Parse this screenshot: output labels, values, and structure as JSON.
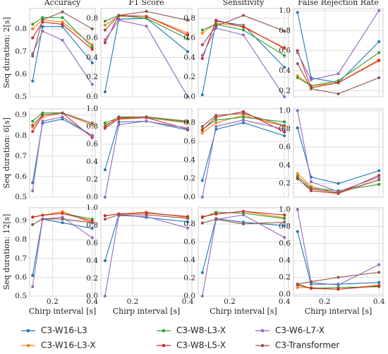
{
  "chart_data": {
    "type": "line",
    "x": [
      0.1,
      0.15,
      0.25,
      0.4
    ],
    "xlim": [
      0.085,
      0.415
    ],
    "xticks": [
      0.2,
      0.4
    ],
    "xlabel": "Chirp interval [s]",
    "columns": [
      "Accuracy",
      "F1 Score",
      "Sensitivity",
      "False Rejection Rate"
    ],
    "rows": [
      "Seq duration: 2[s]",
      "Seq duration: 6[s]",
      "Seq duration: 12[s]"
    ],
    "grid": true,
    "legend": [
      {
        "name": "C3-W16-L3",
        "color": "#1f77b4"
      },
      {
        "name": "C3-W16-L3-X",
        "color": "#ff7f0e"
      },
      {
        "name": "C3-W8-L3-X",
        "color": "#2ca02c"
      },
      {
        "name": "C3-W8-L5-X",
        "color": "#d62728"
      },
      {
        "name": "C3-W6-L7-X",
        "color": "#9467bd"
      },
      {
        "name": "C3-Transformer",
        "color": "#8c564b"
      }
    ],
    "panels": [
      {
        "ylim": [
          0.5,
          0.89
        ],
        "yticks": [
          0.5,
          0.6,
          0.7,
          0.8
        ],
        "series": [
          {
            "values": [
              0.57,
              0.81,
              0.81,
              0.65
            ]
          },
          {
            "values": [
              0.8,
              0.84,
              0.83,
              0.73
            ]
          },
          {
            "values": [
              0.82,
              0.85,
              0.85,
              0.72
            ]
          },
          {
            "values": [
              0.76,
              0.83,
              0.82,
              0.71
            ]
          },
          {
            "values": [
              0.69,
              0.79,
              0.75,
              0.555
            ]
          },
          {
            "values": [
              0.68,
              0.84,
              0.875,
              0.8
            ]
          }
        ]
      },
      {
        "ylim": [
          0,
          0.9
        ],
        "yticks": [
          {
            "value": 0,
            "label": "0.0"
          },
          0.2,
          0.4,
          0.6,
          0.8
        ],
        "series": [
          {
            "values": [
              0.05,
              0.79,
              0.8,
              0.46
            ]
          },
          {
            "values": [
              0.73,
              0.82,
              0.82,
              0.65
            ]
          },
          {
            "values": [
              0.77,
              0.83,
              0.8,
              0.59
            ]
          },
          {
            "values": [
              0.55,
              0.83,
              0.82,
              0.63
            ]
          },
          {
            "values": [
              0.58,
              0.78,
              0.72,
              0.0
            ]
          },
          {
            "values": [
              0.68,
              0.83,
              0.87,
              0.78
            ]
          }
        ]
      },
      {
        "ylim": [
          0,
          0.9
        ],
        "yticks": [
          {
            "value": 0,
            "label": "0.0"
          },
          0.2,
          0.4,
          0.6,
          0.8
        ],
        "series": [
          {
            "values": [
              0.02,
              0.77,
              0.73,
              0.3
            ]
          },
          {
            "values": [
              0.65,
              0.75,
              0.72,
              0.49
            ]
          },
          {
            "values": [
              0.68,
              0.74,
              0.68,
              0.42
            ]
          },
          {
            "values": [
              0.39,
              0.78,
              0.71,
              0.5
            ]
          },
          {
            "values": [
              0.42,
              0.7,
              0.63,
              0.0
            ]
          },
          {
            "values": [
              0.53,
              0.72,
              0.83,
              0.67
            ]
          }
        ]
      },
      {
        "ylim": [
          0.14,
          1.02
        ],
        "yticks": [
          0.2,
          0.4,
          0.6,
          0.8,
          {
            "value": 1,
            "label": "1.0"
          }
        ],
        "series": [
          {
            "values": [
              0.98,
              0.33,
              0.28,
              0.69
            ]
          },
          {
            "values": [
              0.35,
              0.25,
              0.28,
              0.51
            ]
          },
          {
            "values": [
              0.33,
              0.25,
              0.3,
              0.58
            ]
          },
          {
            "values": [
              0.6,
              0.23,
              0.28,
              0.5
            ]
          },
          {
            "values": [
              0.58,
              0.31,
              0.37,
              1.0
            ]
          },
          {
            "values": [
              0.47,
              0.22,
              0.17,
              0.33
            ]
          }
        ]
      },
      {
        "ylim": [
          0.5,
          0.93
        ],
        "yticks": [
          0.5,
          0.6,
          0.7,
          0.8,
          0.9
        ],
        "series": [
          {
            "values": [
              0.57,
              0.86,
              0.88,
              0.8
            ]
          },
          {
            "values": [
              0.84,
              0.89,
              0.91,
              0.85
            ]
          },
          {
            "values": [
              0.87,
              0.91,
              0.91,
              0.86
            ]
          },
          {
            "values": [
              0.82,
              0.9,
              0.91,
              0.79
            ]
          },
          {
            "values": [
              0.53,
              0.87,
              0.89,
              0.8
            ]
          },
          {
            "values": [
              0.85,
              0.9,
              0.91,
              0.86
            ]
          }
        ]
      },
      {
        "ylim": [
          0,
          1.0
        ],
        "yticks": [
          {
            "value": 0,
            "label": "0.0"
          },
          0.2,
          0.4,
          0.6,
          0.8,
          {
            "value": 1,
            "label": "1.0"
          }
        ],
        "series": [
          {
            "values": [
              0.31,
              0.85,
              0.86,
              0.76
            ]
          },
          {
            "values": [
              0.82,
              0.88,
              0.9,
              0.84
            ]
          },
          {
            "values": [
              0.84,
              0.9,
              0.9,
              0.85
            ]
          },
          {
            "values": [
              0.78,
              0.89,
              0.9,
              0.77
            ]
          },
          {
            "values": [
              0.0,
              0.82,
              0.86,
              0.78
            ]
          },
          {
            "values": [
              0.8,
              0.91,
              0.91,
              0.86
            ]
          }
        ]
      },
      {
        "ylim": [
          0,
          0.95
        ],
        "yticks": [
          {
            "value": 0,
            "label": "0.0"
          },
          0.2,
          0.4,
          0.6,
          0.8
        ],
        "series": [
          {
            "values": [
              0.18,
              0.73,
              0.8,
              0.66
            ]
          },
          {
            "values": [
              0.69,
              0.8,
              0.88,
              0.76
            ]
          },
          {
            "values": [
              0.73,
              0.83,
              0.86,
              0.81
            ]
          },
          {
            "values": [
              0.72,
              0.86,
              0.92,
              0.7
            ]
          },
          {
            "values": [
              0.0,
              0.76,
              0.83,
              0.73
            ]
          },
          {
            "values": [
              0.76,
              0.88,
              0.9,
              0.77
            ]
          }
        ]
      },
      {
        "ylim": [
          0.05,
          1.02
        ],
        "yticks": [
          0.2,
          0.4,
          0.6,
          0.8,
          {
            "value": 1,
            "label": "1.0"
          }
        ],
        "series": [
          {
            "values": [
              0.81,
              0.27,
              0.2,
              0.34
            ]
          },
          {
            "values": [
              0.31,
              0.17,
              0.09,
              0.24
            ]
          },
          {
            "values": [
              0.28,
              0.15,
              0.12,
              0.19
            ]
          },
          {
            "values": [
              0.26,
              0.12,
              0.09,
              0.29
            ]
          },
          {
            "values": [
              1.0,
              0.22,
              0.11,
              0.27
            ]
          },
          {
            "values": [
              0.25,
              0.14,
              0.1,
              0.24
            ]
          }
        ]
      },
      {
        "ylim": [
          0.5,
          0.97
        ],
        "yticks": [
          0.5,
          0.6,
          0.7,
          0.8,
          0.9
        ],
        "series": [
          {
            "values": [
              0.61,
              0.91,
              0.89,
              0.86
            ]
          },
          {
            "values": [
              0.92,
              0.93,
              0.95,
              0.89
            ]
          },
          {
            "values": [
              0.92,
              0.93,
              0.94,
              0.91
            ]
          },
          {
            "values": [
              0.92,
              0.93,
              0.94,
              0.9
            ]
          },
          {
            "values": [
              0.55,
              0.91,
              0.92,
              0.81
            ]
          },
          {
            "values": [
              0.88,
              0.91,
              0.91,
              0.89
            ]
          }
        ]
      },
      {
        "ylim": [
          0,
          1.0
        ],
        "yticks": [
          {
            "value": 0,
            "label": "0.0"
          },
          0.2,
          0.4,
          0.6,
          0.8,
          {
            "value": 1,
            "label": "1.0"
          }
        ],
        "series": [
          {
            "values": [
              0.4,
              0.92,
              0.89,
              0.84
            ]
          },
          {
            "values": [
              0.91,
              0.93,
              0.95,
              0.89
            ]
          },
          {
            "values": [
              0.91,
              0.93,
              0.94,
              0.9
            ]
          },
          {
            "values": [
              0.91,
              0.93,
              0.94,
              0.9
            ]
          },
          {
            "values": [
              0.0,
              0.91,
              0.9,
              0.77
            ]
          },
          {
            "values": [
              0.87,
              0.92,
              0.92,
              0.88
            ]
          }
        ]
      },
      {
        "ylim": [
          0,
          0.98
        ],
        "yticks": [
          {
            "value": 0,
            "label": "0.0"
          },
          0.2,
          0.4,
          0.6,
          0.8
        ],
        "series": [
          {
            "values": [
              0.26,
              0.86,
              0.82,
              0.78
            ]
          },
          {
            "values": [
              0.88,
              0.91,
              0.94,
              0.87
            ]
          },
          {
            "values": [
              0.87,
              0.93,
              0.92,
              0.86
            ]
          },
          {
            "values": [
              0.88,
              0.91,
              0.94,
              0.9
            ]
          },
          {
            "values": [
              0.0,
              0.85,
              0.9,
              0.65
            ]
          },
          {
            "values": [
              0.81,
              0.85,
              0.8,
              0.82
            ]
          }
        ]
      },
      {
        "ylim": [
          -0.02,
          1.02
        ],
        "yticks": [
          {
            "value": 0,
            "label": "0.0"
          },
          0.2,
          0.4,
          0.6,
          0.8,
          {
            "value": 1,
            "label": "1.0"
          }
        ],
        "series": [
          {
            "values": [
              0.74,
              0.12,
              0.12,
              0.14
            ]
          },
          {
            "values": [
              0.08,
              0.08,
              0.06,
              0.11
            ]
          },
          {
            "values": [
              0.12,
              0.07,
              0.08,
              0.09
            ]
          },
          {
            "values": [
              0.11,
              0.07,
              0.06,
              0.1
            ]
          },
          {
            "values": [
              1.0,
              0.14,
              0.11,
              0.35
            ]
          },
          {
            "values": [
              0.12,
              0.15,
              0.2,
              0.26
            ]
          }
        ]
      }
    ]
  }
}
